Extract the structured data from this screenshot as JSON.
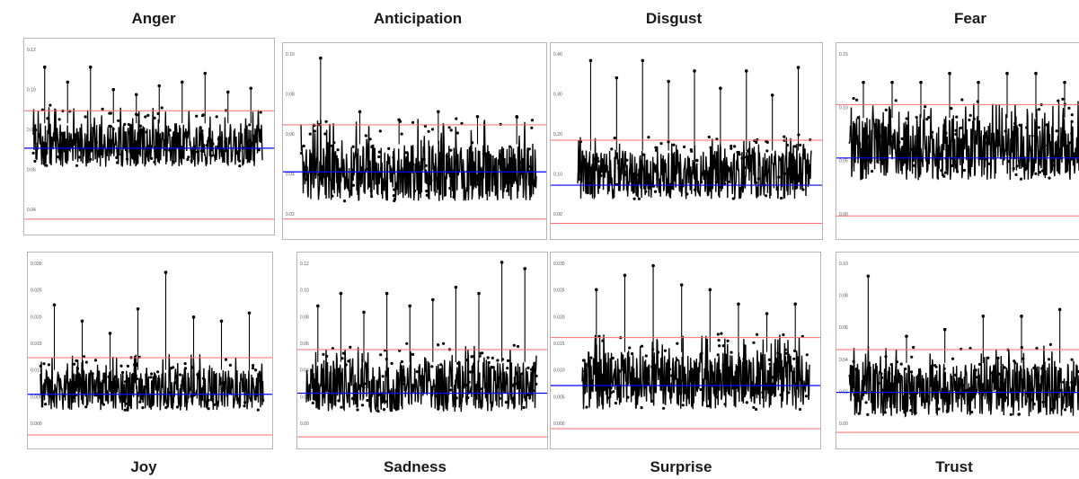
{
  "chart_data": [
    {
      "type": "line",
      "title": "Anger",
      "ylim": [
        -0.02,
        0.13
      ],
      "y_ticks": [
        "0.12",
        "0.10",
        "0.08",
        "0.06",
        "0.04"
      ],
      "center_line": 0.045,
      "upper_limit": 0.075,
      "lower_limit": -0.012,
      "baseline_min": 0.03,
      "baseline_max": 0.065,
      "peaks": [
        0.11,
        0.098,
        0.11,
        0.092,
        0.088,
        0.095,
        0.098,
        0.105,
        0.09,
        0.093
      ],
      "colors": {
        "series": "#000000",
        "center": "#0000ff",
        "limits": "#ff6b6b"
      }
    },
    {
      "type": "line",
      "title": "Anticipation",
      "ylim": [
        -0.01,
        0.105
      ],
      "y_ticks": [
        "0.10",
        "0.08",
        "0.06",
        "0.04",
        "0.02"
      ],
      "center_line": 0.028,
      "upper_limit": 0.057,
      "lower_limit": -0.001,
      "baseline_min": 0.01,
      "baseline_max": 0.045,
      "peaks": [
        0.098,
        0.065,
        0.06,
        0.065,
        0.062,
        0.062
      ],
      "colors": {
        "series": "#000000",
        "center": "#0000ff",
        "limits": "#ff6b6b"
      }
    },
    {
      "type": "line",
      "title": "Disgust",
      "ylim": [
        -0.12,
        0.42
      ],
      "y_ticks": [
        "0.40",
        "0.30",
        "0.20",
        "0.10",
        "0.00"
      ],
      "center_line": 0.02,
      "upper_limit": 0.15,
      "lower_limit": -0.09,
      "baseline_min": -0.02,
      "baseline_max": 0.12,
      "peaks": [
        0.38,
        0.33,
        0.38,
        0.32,
        0.35,
        0.3,
        0.35,
        0.28,
        0.36
      ],
      "colors": {
        "series": "#000000",
        "center": "#0000ff",
        "limits": "#ff6b6b"
      }
    },
    {
      "type": "line",
      "title": "Fear",
      "ylim": [
        -0.03,
        0.18
      ],
      "y_ticks": [
        "0.15",
        "0.10",
        "0.05",
        "0.00"
      ],
      "center_line": 0.055,
      "upper_limit": 0.115,
      "lower_limit": -0.01,
      "baseline_min": 0.03,
      "baseline_max": 0.1,
      "peaks": [
        0.14,
        0.14,
        0.14,
        0.15,
        0.14,
        0.15,
        0.15,
        0.14
      ],
      "colors": {
        "series": "#000000",
        "center": "#0000ff",
        "limits": "#ff6b6b"
      }
    },
    {
      "type": "line",
      "title": "Joy",
      "ylim": [
        -0.006,
        0.04
      ],
      "y_ticks": [
        "0.030",
        "0.025",
        "0.020",
        "0.015",
        "0.010",
        "0.005",
        "0.000"
      ],
      "center_line": 0.006,
      "upper_limit": 0.015,
      "lower_limit": -0.004,
      "baseline_min": 0.002,
      "baseline_max": 0.012,
      "peaks": [
        0.028,
        0.024,
        0.021,
        0.027,
        0.036,
        0.025,
        0.024,
        0.026
      ],
      "colors": {
        "series": "#000000",
        "center": "#0000ff",
        "limits": "#ff6b6b"
      }
    },
    {
      "type": "line",
      "title": "Sadness",
      "ylim": [
        -0.02,
        0.13
      ],
      "y_ticks": [
        "0.12",
        "0.10",
        "0.08",
        "0.06",
        "0.04",
        "0.02",
        "0.00"
      ],
      "center_line": 0.02,
      "upper_limit": 0.055,
      "lower_limit": -0.015,
      "baseline_min": 0.005,
      "baseline_max": 0.045,
      "peaks": [
        0.09,
        0.1,
        0.085,
        0.1,
        0.09,
        0.095,
        0.105,
        0.1,
        0.125,
        0.12
      ],
      "colors": {
        "series": "#000000",
        "center": "#0000ff",
        "limits": "#ff6b6b"
      }
    },
    {
      "type": "line",
      "title": "Surprise",
      "ylim": [
        -0.007,
        0.032
      ],
      "y_ticks": [
        "0.030",
        "0.025",
        "0.020",
        "0.015",
        "0.010",
        "0.005",
        "0.000"
      ],
      "center_line": 0.005,
      "upper_limit": 0.015,
      "lower_limit": -0.004,
      "baseline_min": 0.0,
      "baseline_max": 0.012,
      "peaks": [
        0.025,
        0.028,
        0.03,
        0.026,
        0.025,
        0.022,
        0.02,
        0.022
      ],
      "colors": {
        "series": "#000000",
        "center": "#0000ff",
        "limits": "#ff6b6b"
      }
    },
    {
      "type": "line",
      "title": "Trust",
      "ylim": [
        -0.02,
        0.12
      ],
      "y_ticks": [
        "0.10",
        "0.08",
        "0.06",
        "0.04",
        "0.02",
        "0.00"
      ],
      "center_line": 0.018,
      "upper_limit": 0.05,
      "lower_limit": -0.012,
      "baseline_min": 0.0,
      "baseline_max": 0.04,
      "peaks": [
        0.105,
        0.06,
        0.065,
        0.075,
        0.075,
        0.08
      ],
      "colors": {
        "series": "#000000",
        "center": "#0000ff",
        "limits": "#ff6b6b"
      }
    }
  ]
}
